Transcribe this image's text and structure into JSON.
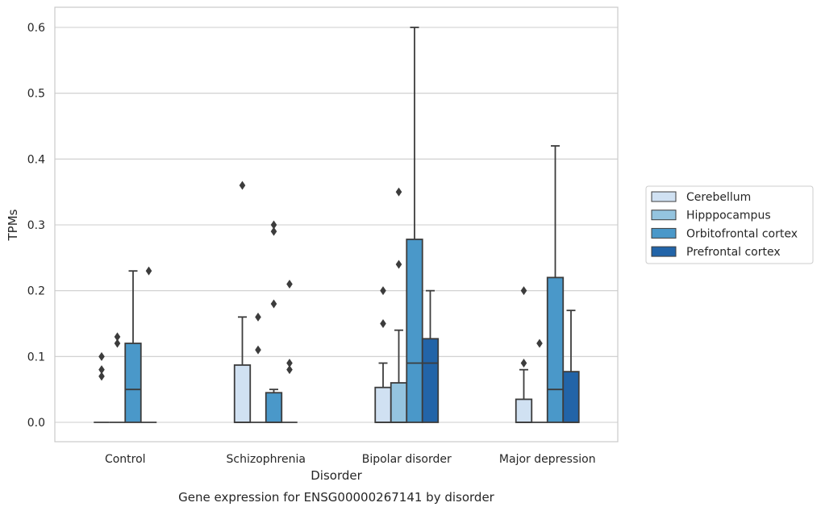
{
  "chart_data": {
    "type": "box",
    "title": "",
    "caption": "Gene expression for ENSG00000267141 by disorder",
    "xlabel": "Disorder",
    "ylabel": "TPMs",
    "ylim": [
      -0.03,
      0.63
    ],
    "yticks": [
      0.0,
      0.1,
      0.2,
      0.3,
      0.4,
      0.5,
      0.6
    ],
    "ytick_labels": [
      "0.0",
      "0.1",
      "0.2",
      "0.3",
      "0.4",
      "0.5",
      "0.6"
    ],
    "grid": "horizontal",
    "legend_position": "right",
    "categories": [
      "Control",
      "Schizophrenia",
      "Bipolar disorder",
      "Major depression"
    ],
    "series": [
      {
        "name": "Cerebellum",
        "color": "#d0e1f2",
        "boxes": [
          {
            "q1": 0,
            "median": 0,
            "q3": 0,
            "whisker_low": 0,
            "whisker_high": 0,
            "outliers": [
              0.07,
              0.08,
              0.1
            ]
          },
          {
            "q1": 0,
            "median": 0,
            "q3": 0.087,
            "whisker_low": 0,
            "whisker_high": 0.16,
            "outliers": [
              0.36
            ]
          },
          {
            "q1": 0,
            "median": 0,
            "q3": 0.053,
            "whisker_low": 0,
            "whisker_high": 0.09,
            "outliers": [
              0.15,
              0.2
            ]
          },
          {
            "q1": 0,
            "median": 0,
            "q3": 0.035,
            "whisker_low": 0,
            "whisker_high": 0.08,
            "outliers": [
              0.09,
              0.2
            ]
          }
        ]
      },
      {
        "name": "Hipppocampus",
        "color": "#94c4df",
        "boxes": [
          {
            "q1": 0,
            "median": 0,
            "q3": 0,
            "whisker_low": 0,
            "whisker_high": 0,
            "outliers": [
              0.12,
              0.13
            ]
          },
          {
            "q1": 0,
            "median": 0,
            "q3": 0,
            "whisker_low": 0,
            "whisker_high": 0,
            "outliers": [
              0.11,
              0.16
            ]
          },
          {
            "q1": 0,
            "median": 0,
            "q3": 0.06,
            "whisker_low": 0,
            "whisker_high": 0.14,
            "outliers": [
              0.24,
              0.35
            ]
          },
          {
            "q1": 0,
            "median": 0,
            "q3": 0,
            "whisker_low": 0,
            "whisker_high": 0,
            "outliers": [
              0.12
            ]
          }
        ]
      },
      {
        "name": "Orbitofrontal cortex",
        "color": "#4a98c9",
        "boxes": [
          {
            "q1": 0,
            "median": 0.05,
            "q3": 0.12,
            "whisker_low": 0,
            "whisker_high": 0.23,
            "outliers": []
          },
          {
            "q1": 0,
            "median": 0,
            "q3": 0.045,
            "whisker_low": 0,
            "whisker_high": 0.05,
            "outliers": [
              0.18,
              0.29,
              0.3
            ]
          },
          {
            "q1": 0,
            "median": 0.09,
            "q3": 0.278,
            "whisker_low": 0,
            "whisker_high": 0.6,
            "outliers": []
          },
          {
            "q1": 0,
            "median": 0.05,
            "q3": 0.22,
            "whisker_low": 0,
            "whisker_high": 0.42,
            "outliers": []
          }
        ]
      },
      {
        "name": "Prefrontal cortex",
        "color": "#2264a8",
        "boxes": [
          {
            "q1": 0,
            "median": 0,
            "q3": 0,
            "whisker_low": 0,
            "whisker_high": 0,
            "outliers": [
              0.23
            ]
          },
          {
            "q1": 0,
            "median": 0,
            "q3": 0,
            "whisker_low": 0,
            "whisker_high": 0,
            "outliers": [
              0.08,
              0.09,
              0.21
            ]
          },
          {
            "q1": 0,
            "median": 0.09,
            "q3": 0.127,
            "whisker_low": 0,
            "whisker_high": 0.2,
            "outliers": []
          },
          {
            "q1": 0,
            "median": 0,
            "q3": 0.077,
            "whisker_low": 0,
            "whisker_high": 0.17,
            "outliers": []
          }
        ]
      }
    ]
  }
}
